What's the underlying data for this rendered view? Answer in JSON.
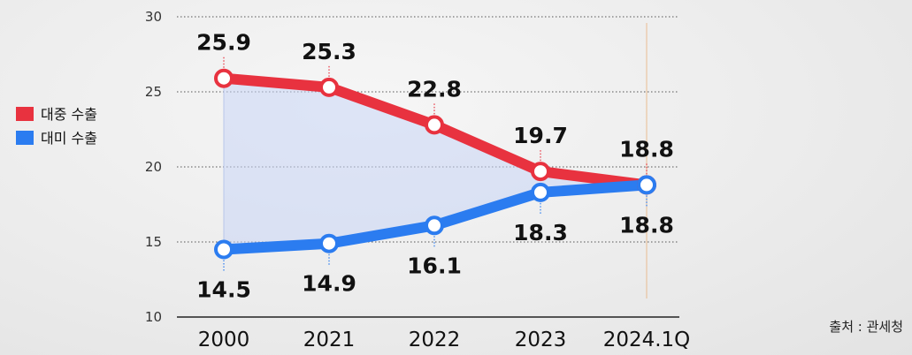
{
  "chart_data": {
    "type": "line",
    "categories": [
      "2000",
      "2021",
      "2022",
      "2023",
      "2024.1Q"
    ],
    "ylim": [
      10,
      30
    ],
    "yticks": [
      30,
      25,
      20,
      15,
      10
    ],
    "grid": true,
    "legend_position": "left",
    "series": [
      {
        "name": "대중 수출",
        "color": "#e8323f",
        "values": [
          25.9,
          25.3,
          22.8,
          19.7,
          18.8
        ],
        "labels": [
          "25.9",
          "25.3",
          "22.8",
          "19.7",
          "18.8"
        ],
        "label_side": "above"
      },
      {
        "name": "대미 수출",
        "color": "#2b7cf0",
        "values": [
          14.5,
          14.9,
          16.1,
          18.3,
          18.8
        ],
        "labels": [
          "14.5",
          "14.9",
          "16.1",
          "18.3",
          "18.8"
        ],
        "label_side": "below"
      }
    ],
    "source": "출처 : 관세청"
  }
}
